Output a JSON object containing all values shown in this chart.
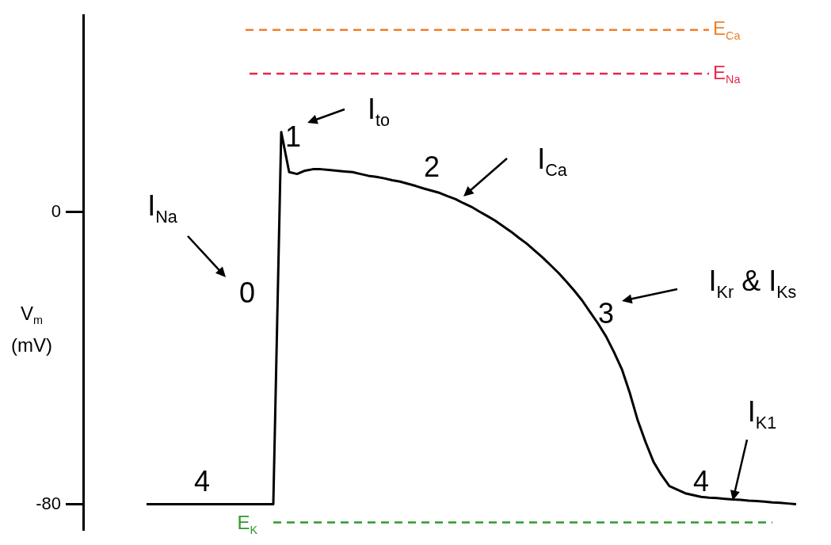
{
  "chart_data": {
    "type": "line",
    "ylabel": "V$_{m}$ (mV)",
    "marker": "none",
    "line_style": "solid",
    "color": "#000000",
    "categories": [
      null,
      null,
      null,
      null,
      null,
      null,
      null,
      null,
      null,
      null,
      null,
      null,
      null,
      null,
      null,
      null,
      null,
      null,
      null,
      null,
      null,
      null,
      null,
      null,
      null,
      null,
      null,
      null,
      null,
      null,
      null,
      null,
      null,
      null,
      null,
      null,
      null,
      null,
      null,
      null,
      null,
      null,
      null,
      null,
      null,
      null,
      null,
      null,
      null,
      null,
      null,
      null,
      null,
      null,
      null,
      null,
      null,
      null,
      null,
      null,
      null,
      null,
      null,
      null,
      null,
      null,
      null,
      null,
      null,
      null,
      null,
      null,
      null,
      null,
      null,
      null,
      null,
      null,
      null,
      null,
      null,
      null,
      null
    ],
    "values": [
      -80,
      -80,
      -80,
      -80,
      -80,
      -80,
      -80,
      -80,
      -80,
      -80,
      -80,
      -80,
      -80,
      -80,
      -80,
      -80,
      -80,
      22,
      11,
      10.5,
      11.4,
      11.8,
      11.8,
      11.6,
      11.4,
      11.2,
      11,
      10.5,
      10,
      9.7,
      9.3,
      8.8,
      8.4,
      7.8,
      7.2,
      6.5,
      5.9,
      5.3,
      4.4,
      3.6,
      2.5,
      1.5,
      0.2,
      -1,
      -2.3,
      -3.8,
      -5.3,
      -7,
      -8.6,
      -10.5,
      -12.4,
      -14.5,
      -16.6,
      -19,
      -21.5,
      -24.2,
      -27.4,
      -30.5,
      -34,
      -38.3,
      -43,
      -49.5,
      -57,
      -63,
      -68.4,
      -72,
      -75,
      -76,
      -77,
      -77.5,
      -78,
      -78.2,
      -78.3,
      -78.5,
      -78.7,
      -78.8,
      -79,
      -79.1,
      -79.3,
      -79.5,
      -79.6,
      -79.8,
      -80
    ],
    "ylim": [
      -87,
      54
    ],
    "yticks": [
      0,
      -80
    ],
    "ref_lines": [
      {
        "axis": "y",
        "value": 50,
        "label": "E$_{Ca}$",
        "color": "#f07f2a",
        "line_style": "dashed"
      },
      {
        "axis": "y",
        "value": 38,
        "label": "E$_{Na}$",
        "color": "#e8264a",
        "line_style": "dashed"
      },
      {
        "axis": "y",
        "value": -85,
        "label": "E$_{K}$",
        "color": "#2e9a2a",
        "line_style": "dashed"
      }
    ],
    "annotations": [
      "I$_{Na}$",
      "0",
      "1",
      "I$_{to}$",
      "2",
      "I$_{Ca}$",
      "3",
      "I$_{Kr}$ & I$_{Ks}$",
      "4",
      "4",
      "I$_{K1}$"
    ]
  }
}
